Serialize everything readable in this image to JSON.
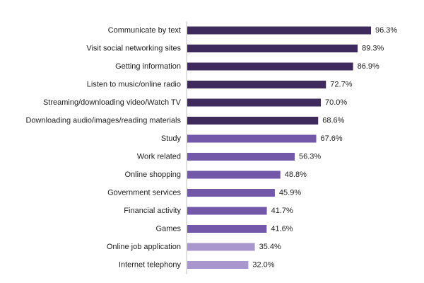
{
  "chart_data": {
    "type": "bar",
    "orientation": "horizontal",
    "categories": [
      "Communicate by text",
      "Visit social networking sites",
      "Getting information",
      "Listen to music/online radio",
      "Streaming/downloading video/Watch TV",
      "Downloading audio/images/reading materials",
      "Study",
      "Work related",
      "Online shopping",
      "Government services",
      "Financial activity",
      "Games",
      "Online job application",
      "Internet telephony"
    ],
    "values": [
      96.3,
      89.3,
      86.9,
      72.7,
      70.0,
      68.6,
      67.6,
      56.3,
      48.8,
      45.9,
      41.7,
      41.6,
      35.4,
      32.0
    ],
    "value_labels": [
      "96.3%",
      "89.3%",
      "86.9%",
      "72.7%",
      "70.0%",
      "68.6%",
      "67.6%",
      "56.3%",
      "48.8%",
      "45.9%",
      "41.7%",
      "41.6%",
      "35.4%",
      "32.0%"
    ],
    "bar_colors": [
      "#3f2a5e",
      "#3f2a5e",
      "#3f2a5e",
      "#3f2a5e",
      "#3f2a5e",
      "#3f2a5e",
      "#7357a8",
      "#7357a8",
      "#7357a8",
      "#7357a8",
      "#7357a8",
      "#7357a8",
      "#a896cc",
      "#a896cc"
    ],
    "axis_line_color": "#bdbdbd",
    "xlim": [
      0,
      100
    ],
    "title": "",
    "xlabel": "",
    "ylabel": "",
    "grid": false,
    "legend": false
  }
}
